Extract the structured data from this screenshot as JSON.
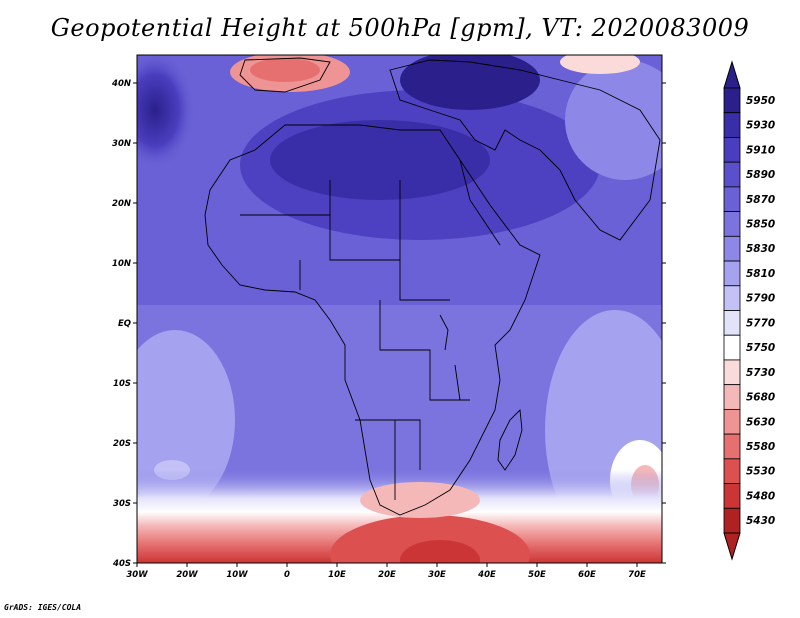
{
  "title": "Geopotential Height at 500hPa [gpm], VT: 2020083009",
  "footer": "GrADS: IGES/COLA",
  "map": {
    "lat_ticks": [
      "40N",
      "30N",
      "20N",
      "10N",
      "EQ",
      "10S",
      "20S",
      "30S",
      "40S"
    ],
    "lon_ticks": [
      "30W",
      "20W",
      "10W",
      "0",
      "10E",
      "20E",
      "30E",
      "40E",
      "50E",
      "60E",
      "70E"
    ]
  },
  "colorbar": {
    "levels": [
      "5950",
      "5930",
      "5910",
      "5890",
      "5870",
      "5850",
      "5830",
      "5810",
      "5790",
      "5770",
      "5750",
      "5730",
      "5680",
      "5630",
      "5580",
      "5530",
      "5480",
      "5430"
    ],
    "colors": [
      "#2b1f8c",
      "#3a2ea8",
      "#4a3ebf",
      "#5a50cc",
      "#6a61d6",
      "#7b74df",
      "#8d88e7",
      "#a5a2ef",
      "#c3c1f6",
      "#e3e2fb",
      "#ffffff",
      "#fbdada",
      "#f5b8b8",
      "#ee9494",
      "#e67070",
      "#dc5050",
      "#cc3535",
      "#b02222"
    ]
  }
}
